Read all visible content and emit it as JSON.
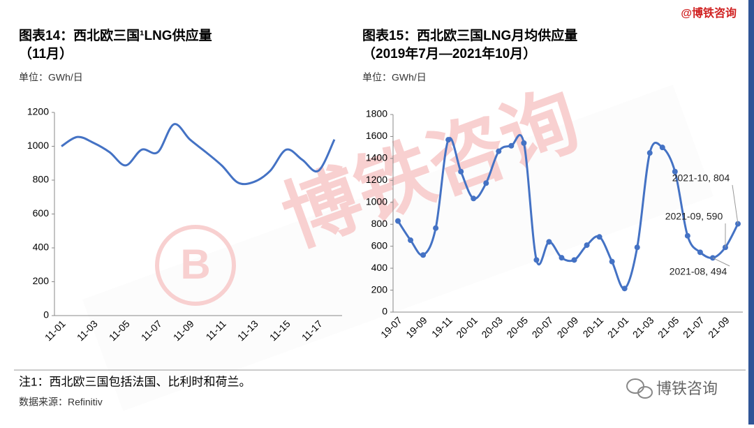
{
  "brand": "@博铁咨询",
  "watermark": "博铁咨询",
  "footnote": "注1：西北欧三国包括法国、比利时和荷兰。",
  "source": "数据来源：Refinitiv",
  "wechat": "博铁咨询",
  "chart_data": [
    {
      "type": "line",
      "title": "图表14：西北欧三国¹LNG供应量",
      "subtitle": "（11月）",
      "unit": "单位：GWh/日",
      "categories": [
        "11-01",
        null,
        "11-03",
        null,
        "11-05",
        null,
        "11-07",
        null,
        "11-09",
        null,
        "11-11",
        null,
        "11-13",
        null,
        "11-15",
        null,
        "11-17",
        null
      ],
      "values": [
        1000,
        1055,
        1020,
        965,
        887,
        980,
        965,
        1130,
        1040,
        965,
        885,
        785,
        790,
        855,
        980,
        920,
        855,
        1040
      ],
      "color": "#4472c4",
      "markers": false,
      "ylim": [
        0,
        1200
      ],
      "yticks": [
        0,
        200,
        400,
        600,
        800,
        1000,
        1200
      ]
    },
    {
      "type": "line",
      "title": "图表15：西北欧三国LNG月均供应量",
      "subtitle": "（2019年7月—2021年10月）",
      "unit": "单位：GWh/日",
      "categories": [
        "19-07",
        null,
        "19-09",
        null,
        "19-11",
        null,
        "20-01",
        null,
        "20-03",
        null,
        "20-05",
        null,
        "20-07",
        null,
        "20-09",
        null,
        "20-11",
        null,
        "21-01",
        null,
        "21-03",
        null,
        "21-05",
        null,
        "21-07",
        null,
        "21-09",
        null
      ],
      "values": [
        830,
        655,
        520,
        765,
        1570,
        1280,
        1035,
        1175,
        1465,
        1515,
        1540,
        475,
        640,
        495,
        475,
        610,
        685,
        460,
        215,
        590,
        1450,
        1500,
        1280,
        695,
        545,
        494,
        590,
        804
      ],
      "value_labels": [
        null,
        null,
        null,
        null,
        null,
        null,
        null,
        null,
        null,
        null,
        null,
        null,
        null,
        null,
        null,
        null,
        null,
        null,
        null,
        null,
        null,
        null,
        null,
        null,
        null,
        "2021-08, 494",
        "2021-09, 590",
        "2021-10, 804"
      ],
      "color": "#4472c4",
      "markers": true,
      "ylim": [
        0,
        1800
      ],
      "yticks": [
        0,
        200,
        400,
        600,
        800,
        1000,
        1200,
        1400,
        1600,
        1800
      ]
    }
  ]
}
